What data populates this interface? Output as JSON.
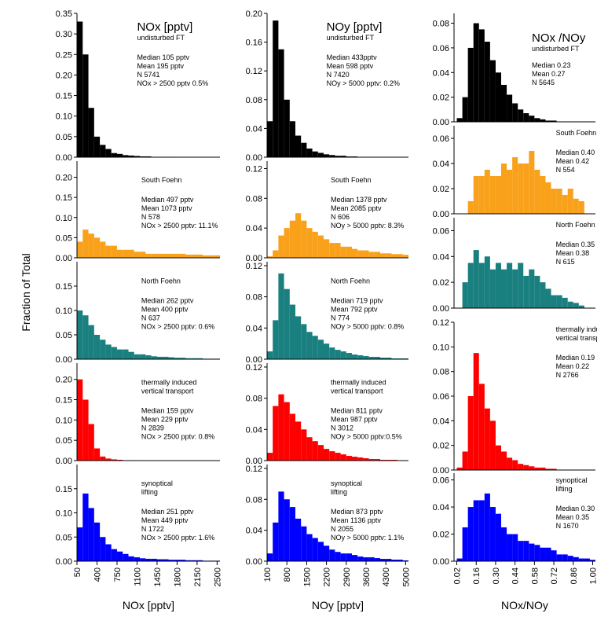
{
  "y_label": "Fraction of Total",
  "chart_data": [
    {
      "type": "histogram",
      "title": "NOx [pptv]",
      "annotations": [
        "undisturbed FT",
        "Median 105 pptv",
        "Mean 195 pptv",
        "N 5741",
        "NOx > 2500 pptv 0.5%"
      ],
      "color": "#000000",
      "bins": [
        50,
        150,
        250,
        350,
        450,
        550,
        650,
        750,
        850,
        950,
        1050,
        1150,
        1250,
        1350,
        1450,
        1550,
        1650,
        1750,
        1850,
        1950,
        2050,
        2150,
        2250,
        2350,
        2450,
        2550
      ],
      "values": [
        0.33,
        0.25,
        0.12,
        0.05,
        0.03,
        0.02,
        0.01,
        0.008,
        0.005,
        0.004,
        0.003,
        0.002,
        0.002,
        0.001,
        0.001,
        0.001,
        0.001,
        0,
        0,
        0,
        0,
        0,
        0,
        0,
        0
      ],
      "xlim": [
        50,
        2550
      ],
      "ylim": [
        0,
        0.35
      ],
      "yticks": [
        {
          "value": 0,
          "label": "0.00"
        },
        0.05,
        {
          "value": 0.1,
          "label": "0.10"
        },
        0.15,
        {
          "value": 0.2,
          "label": "0.20"
        },
        0.25,
        {
          "value": 0.3,
          "label": "0.30"
        },
        0.35
      ]
    },
    {
      "type": "histogram",
      "annotations": [
        "South Foehn",
        "Median 497 pptv",
        "Mean 1073 pptv",
        "N 578",
        "NOx > 2500 pptv: 11.1%"
      ],
      "color": "#f9a11b",
      "bins": [
        50,
        150,
        250,
        350,
        450,
        550,
        650,
        750,
        850,
        950,
        1050,
        1150,
        1250,
        1350,
        1450,
        1550,
        1650,
        1750,
        1850,
        1950,
        2050,
        2150,
        2250,
        2350,
        2450,
        2550
      ],
      "values": [
        0.04,
        0.07,
        0.06,
        0.05,
        0.04,
        0.03,
        0.03,
        0.02,
        0.02,
        0.02,
        0.015,
        0.015,
        0.01,
        0.01,
        0.01,
        0.01,
        0.01,
        0.01,
        0.01,
        0.008,
        0.008,
        0.008,
        0.006,
        0.006,
        0.006
      ],
      "xlim": [
        50,
        2550
      ],
      "ylim": [
        0,
        0.24
      ],
      "yticks": [
        {
          "value": 0,
          "label": "0.00"
        },
        0.05,
        {
          "value": 0.1,
          "label": "0.10"
        },
        0.15,
        {
          "value": 0.2,
          "label": "0.20"
        }
      ]
    },
    {
      "type": "histogram",
      "annotations": [
        "North Foehn",
        "Median 262 pptv",
        "Mean 400 pptv",
        "N 637",
        "NOx > 2500 pptv: 0.6%"
      ],
      "color": "#1a7f7f",
      "bins": [
        50,
        150,
        250,
        350,
        450,
        550,
        650,
        750,
        850,
        950,
        1050,
        1150,
        1250,
        1350,
        1450,
        1550,
        1650,
        1750,
        1850,
        1950,
        2050,
        2150,
        2250,
        2350,
        2450,
        2550
      ],
      "values": [
        0.1,
        0.09,
        0.07,
        0.05,
        0.04,
        0.03,
        0.025,
        0.02,
        0.02,
        0.015,
        0.01,
        0.01,
        0.008,
        0.006,
        0.005,
        0.005,
        0.004,
        0.003,
        0.003,
        0.002,
        0.002,
        0.002,
        0.001,
        0.001,
        0.001
      ],
      "xlim": [
        50,
        2550
      ],
      "ylim": [
        0,
        0.2
      ],
      "yticks": [
        {
          "value": 0,
          "label": "0.00"
        },
        0.05,
        {
          "value": 0.1,
          "label": "0.10"
        },
        0.15
      ]
    },
    {
      "type": "histogram",
      "annotations": [
        "thermally induced",
        "vertical transport",
        "Median 159 pptv",
        "Mean 229 pptv",
        "N 2839",
        "NOx > 2500 pptv: 0.8%"
      ],
      "color": "#ff0000",
      "bins": [
        50,
        150,
        250,
        350,
        450,
        550,
        650,
        750,
        850,
        950,
        1050,
        1150,
        1250,
        1350,
        1450,
        1550,
        1650,
        1750,
        1850,
        1950,
        2050,
        2150,
        2250,
        2350,
        2450,
        2550
      ],
      "values": [
        0.2,
        0.15,
        0.09,
        0.03,
        0.01,
        0.005,
        0.003,
        0.002,
        0.001,
        0.001,
        0.001,
        0,
        0,
        0,
        0,
        0,
        0,
        0,
        0,
        0,
        0,
        0,
        0,
        0,
        0
      ],
      "xlim": [
        50,
        2550
      ],
      "ylim": [
        0,
        0.24
      ],
      "yticks": [
        {
          "value": 0,
          "label": "0.00"
        },
        0.05,
        {
          "value": 0.1,
          "label": "0.10"
        },
        0.15,
        {
          "value": 0.2,
          "label": "0.20"
        }
      ]
    },
    {
      "type": "histogram",
      "annotations": [
        "synoptical",
        "lifting",
        "Median 251 pptv",
        "Mean 449 pptv",
        "N 1722",
        "NOx > 2500 pptv: 1.6%"
      ],
      "color": "#0000ff",
      "bins": [
        50,
        150,
        250,
        350,
        450,
        550,
        650,
        750,
        850,
        950,
        1050,
        1150,
        1250,
        1350,
        1450,
        1550,
        1650,
        1750,
        1850,
        1950,
        2050,
        2150,
        2250,
        2350,
        2450,
        2550
      ],
      "values": [
        0.07,
        0.14,
        0.11,
        0.08,
        0.05,
        0.035,
        0.025,
        0.02,
        0.015,
        0.01,
        0.008,
        0.006,
        0.005,
        0.005,
        0.004,
        0.004,
        0.003,
        0.003,
        0.003,
        0.002,
        0.002,
        0.002,
        0.001,
        0.001,
        0.001
      ],
      "xlim": [
        50,
        2550
      ],
      "ylim": [
        0,
        0.2
      ],
      "yticks": [
        {
          "value": 0,
          "label": "0.00"
        },
        0.05,
        {
          "value": 0.1,
          "label": "0.10"
        },
        0.15
      ],
      "xticks": [
        50,
        400,
        750,
        1100,
        1450,
        1800,
        2150,
        2500
      ],
      "xlabel": "NOx [pptv]"
    },
    {
      "type": "histogram",
      "title": "NOy [pptv]",
      "annotations": [
        "undisturbed FT",
        "Median 433pptv",
        "Mean 598 pptv",
        "N 7420",
        "NOy > 5000 pptv: 0.2%"
      ],
      "color": "#000000",
      "bins": [
        100,
        300,
        500,
        700,
        900,
        1100,
        1300,
        1500,
        1700,
        1900,
        2100,
        2300,
        2500,
        2700,
        2900,
        3100,
        3300,
        3500,
        3700,
        3900,
        4100,
        4300,
        4500,
        4700,
        4900,
        5100
      ],
      "values": [
        0.05,
        0.19,
        0.15,
        0.08,
        0.05,
        0.03,
        0.02,
        0.012,
        0.008,
        0.006,
        0.004,
        0.003,
        0.002,
        0.002,
        0.001,
        0.001,
        0,
        0,
        0,
        0,
        0,
        0,
        0,
        0,
        0
      ],
      "xlim": [
        100,
        5100
      ],
      "ylim": [
        0,
        0.2
      ],
      "yticks": [
        {
          "value": 0,
          "label": "0.00"
        },
        0.04,
        0.08,
        0.12,
        0.16,
        {
          "value": 0.2,
          "label": "0.20"
        }
      ]
    },
    {
      "type": "histogram",
      "annotations": [
        "South Foehn",
        "Median 1378 pptv",
        "Mean 2085 pptv",
        "N 606",
        "NOy > 5000 pptv: 8.3%"
      ],
      "color": "#f9a11b",
      "bins": [
        100,
        300,
        500,
        700,
        900,
        1100,
        1300,
        1500,
        1700,
        1900,
        2100,
        2300,
        2500,
        2700,
        2900,
        3100,
        3300,
        3500,
        3700,
        3900,
        4100,
        4300,
        4500,
        4700,
        4900,
        5100
      ],
      "values": [
        0.002,
        0.01,
        0.03,
        0.04,
        0.05,
        0.06,
        0.05,
        0.04,
        0.035,
        0.03,
        0.025,
        0.02,
        0.02,
        0.015,
        0.015,
        0.012,
        0.01,
        0.01,
        0.008,
        0.008,
        0.006,
        0.006,
        0.005,
        0.005,
        0.004
      ],
      "xlim": [
        100,
        5100
      ],
      "ylim": [
        0,
        0.13
      ],
      "yticks": [
        {
          "value": 0,
          "label": "0.00"
        },
        0.04,
        0.08,
        0.12
      ]
    },
    {
      "type": "histogram",
      "annotations": [
        "North Foehn",
        "Median 719 pptv",
        "Mean 792 pptv",
        "N 774",
        "NOy > 5000 pptv: 0.8%"
      ],
      "color": "#1a7f7f",
      "bins": [
        100,
        300,
        500,
        700,
        900,
        1100,
        1300,
        1500,
        1700,
        1900,
        2100,
        2300,
        2500,
        2700,
        2900,
        3100,
        3300,
        3500,
        3700,
        3900,
        4100,
        4300,
        4500,
        4700,
        4900,
        5100
      ],
      "values": [
        0.01,
        0.05,
        0.11,
        0.09,
        0.07,
        0.055,
        0.045,
        0.035,
        0.03,
        0.025,
        0.02,
        0.015,
        0.012,
        0.01,
        0.008,
        0.006,
        0.005,
        0.004,
        0.003,
        0.003,
        0.002,
        0.002,
        0.001,
        0.001,
        0.001
      ],
      "xlim": [
        100,
        5100
      ],
      "ylim": [
        0,
        0.125
      ],
      "yticks": [
        {
          "value": 0,
          "label": "0.00"
        },
        0.04,
        0.08,
        0.12
      ]
    },
    {
      "type": "histogram",
      "annotations": [
        "thermally induced",
        "vertical transport",
        "Median 811 pptv",
        "Mean 987 pptv",
        "N 3012",
        "NOy > 5000 pptv:0.5%"
      ],
      "color": "#ff0000",
      "bins": [
        100,
        300,
        500,
        700,
        900,
        1100,
        1300,
        1500,
        1700,
        1900,
        2100,
        2300,
        2500,
        2700,
        2900,
        3100,
        3300,
        3500,
        3700,
        3900,
        4100,
        4300,
        4500,
        4700,
        4900,
        5100
      ],
      "values": [
        0.01,
        0.07,
        0.085,
        0.075,
        0.06,
        0.05,
        0.04,
        0.03,
        0.025,
        0.02,
        0.015,
        0.012,
        0.01,
        0.008,
        0.006,
        0.005,
        0.004,
        0.003,
        0.002,
        0.002,
        0.001,
        0.001,
        0.001,
        0,
        0
      ],
      "xlim": [
        100,
        5100
      ],
      "ylim": [
        0,
        0.125
      ],
      "yticks": [
        {
          "value": 0,
          "label": "0.00"
        },
        0.04,
        0.08,
        0.12
      ]
    },
    {
      "type": "histogram",
      "annotations": [
        "synoptical",
        "lifting",
        "Median 873 pptv",
        "Mean 1136 pptv",
        "N 2055",
        "NOy > 5000 pptv: 1.1%"
      ],
      "color": "#0000ff",
      "bins": [
        100,
        300,
        500,
        700,
        900,
        1100,
        1300,
        1500,
        1700,
        1900,
        2100,
        2300,
        2500,
        2700,
        2900,
        3100,
        3300,
        3500,
        3700,
        3900,
        4100,
        4300,
        4500,
        4700,
        4900,
        5100
      ],
      "values": [
        0.01,
        0.05,
        0.09,
        0.08,
        0.07,
        0.055,
        0.045,
        0.035,
        0.03,
        0.025,
        0.02,
        0.015,
        0.012,
        0.01,
        0.01,
        0.008,
        0.006,
        0.005,
        0.005,
        0.004,
        0.003,
        0.003,
        0.002,
        0.002,
        0.001
      ],
      "xlim": [
        100,
        5100
      ],
      "ylim": [
        0,
        0.125
      ],
      "yticks": [
        {
          "value": 0,
          "label": "0.00"
        },
        0.04,
        0.08,
        0.12
      ],
      "xticks": [
        100,
        800,
        1500,
        2200,
        2900,
        3600,
        4300,
        5000
      ],
      "xlabel": "NOy [pptv]"
    },
    {
      "type": "histogram",
      "title": "NOx /NOy",
      "annotations": [
        "undisturbed FT",
        "Median 0.23",
        "Mean 0.27",
        "N 5645"
      ],
      "color": "#000000",
      "bins": [
        0.02,
        0.06,
        0.1,
        0.14,
        0.18,
        0.22,
        0.26,
        0.3,
        0.34,
        0.38,
        0.42,
        0.46,
        0.5,
        0.54,
        0.58,
        0.62,
        0.66,
        0.7,
        0.74,
        0.78,
        0.82,
        0.86,
        0.9,
        0.94,
        0.98,
        1.02
      ],
      "values": [
        0.003,
        0.02,
        0.06,
        0.08,
        0.075,
        0.065,
        0.05,
        0.04,
        0.03,
        0.022,
        0.015,
        0.01,
        0.007,
        0.005,
        0.003,
        0.002,
        0.001,
        0.001,
        0,
        0,
        0,
        0,
        0,
        0,
        0
      ],
      "xlim": [
        0,
        1.02
      ],
      "ylim": [
        0,
        0.088
      ],
      "yticks": [
        {
          "value": 0,
          "label": "0.00"
        },
        0.02,
        0.04,
        0.06,
        0.08
      ]
    },
    {
      "type": "histogram",
      "annotations": [
        "South Foehn",
        "Median 0.40",
        "Mean 0.42",
        "N 554"
      ],
      "color": "#f9a11b",
      "bins": [
        0.02,
        0.06,
        0.1,
        0.14,
        0.18,
        0.22,
        0.26,
        0.3,
        0.34,
        0.38,
        0.42,
        0.46,
        0.5,
        0.54,
        0.58,
        0.62,
        0.66,
        0.7,
        0.74,
        0.78,
        0.82,
        0.86,
        0.9,
        0.94,
        0.98,
        1.02
      ],
      "values": [
        0,
        0,
        0.01,
        0.03,
        0.03,
        0.035,
        0.03,
        0.03,
        0.04,
        0.035,
        0.045,
        0.04,
        0.04,
        0.05,
        0.035,
        0.03,
        0.025,
        0.02,
        0.02,
        0.015,
        0.02,
        0.012,
        0.01,
        0,
        0
      ],
      "xlim": [
        0,
        1.02
      ],
      "ylim": [
        0,
        0.07
      ],
      "yticks": [
        {
          "value": 0,
          "label": "0.00"
        },
        0.02,
        0.04,
        0.06
      ]
    },
    {
      "type": "histogram",
      "annotations": [
        "North Foehn",
        "Median 0.35",
        "Mean 0.38",
        "N 615"
      ],
      "color": "#1a7f7f",
      "bins": [
        0.02,
        0.06,
        0.1,
        0.14,
        0.18,
        0.22,
        0.26,
        0.3,
        0.34,
        0.38,
        0.42,
        0.46,
        0.5,
        0.54,
        0.58,
        0.62,
        0.66,
        0.7,
        0.74,
        0.78,
        0.82,
        0.86,
        0.9,
        0.94,
        0.98,
        1.02
      ],
      "values": [
        0,
        0.02,
        0.035,
        0.045,
        0.035,
        0.04,
        0.03,
        0.035,
        0.03,
        0.035,
        0.03,
        0.035,
        0.025,
        0.03,
        0.025,
        0.02,
        0.015,
        0.01,
        0.01,
        0.008,
        0.005,
        0.004,
        0.002,
        0,
        0
      ],
      "xlim": [
        0,
        1.02
      ],
      "ylim": [
        0,
        0.07
      ],
      "yticks": [
        {
          "value": 0,
          "label": "0.00"
        },
        0.02,
        0.04,
        0.06
      ]
    },
    {
      "type": "histogram",
      "annotations": [
        "thermally induced",
        "vertical transport",
        "Median 0.19",
        "Mean 0.22",
        "N 2766"
      ],
      "color": "#ff0000",
      "bins": [
        0.02,
        0.06,
        0.1,
        0.14,
        0.18,
        0.22,
        0.26,
        0.3,
        0.34,
        0.38,
        0.42,
        0.46,
        0.5,
        0.54,
        0.58,
        0.62,
        0.66,
        0.7,
        0.74,
        0.78,
        0.82,
        0.86,
        0.9,
        0.94,
        0.98,
        1.02
      ],
      "values": [
        0.002,
        0.015,
        0.06,
        0.095,
        0.07,
        0.05,
        0.04,
        0.02,
        0.015,
        0.01,
        0.008,
        0.005,
        0.004,
        0.003,
        0.002,
        0.002,
        0.001,
        0.001,
        0,
        0,
        0,
        0,
        0,
        0,
        0
      ],
      "xlim": [
        0,
        1.02
      ],
      "ylim": [
        0,
        0.12
      ],
      "yticks": [
        {
          "value": 0,
          "label": "0.00"
        },
        0.02,
        0.04,
        0.06,
        0.08,
        {
          "value": 0.1,
          "label": "0.10"
        },
        0.12
      ]
    },
    {
      "type": "histogram",
      "annotations": [
        "synoptical",
        "lifting",
        "Median 0.30",
        "Mean 0.35",
        "N 1670"
      ],
      "color": "#0000ff",
      "bins": [
        0.02,
        0.06,
        0.1,
        0.14,
        0.18,
        0.22,
        0.26,
        0.3,
        0.34,
        0.38,
        0.42,
        0.46,
        0.5,
        0.54,
        0.58,
        0.62,
        0.66,
        0.7,
        0.74,
        0.78,
        0.82,
        0.86,
        0.9,
        0.94,
        0.98,
        1.02
      ],
      "values": [
        0.002,
        0.025,
        0.04,
        0.045,
        0.045,
        0.05,
        0.04,
        0.035,
        0.025,
        0.02,
        0.02,
        0.015,
        0.015,
        0.013,
        0.012,
        0.01,
        0.01,
        0.008,
        0.005,
        0.005,
        0.004,
        0.003,
        0.002,
        0.002,
        0.001
      ],
      "xlim": [
        0,
        1.02
      ],
      "ylim": [
        0,
        0.065
      ],
      "yticks": [
        {
          "value": 0,
          "label": "0.00"
        },
        0.02,
        0.04,
        0.06
      ],
      "xticks": [
        0.02,
        0.16,
        {
          "value": 0.3,
          "label": "0.30"
        },
        0.44,
        0.58,
        0.72,
        0.86,
        {
          "value": 1,
          "label": "1.00"
        }
      ],
      "xlabel": "NOx/NOy"
    }
  ]
}
